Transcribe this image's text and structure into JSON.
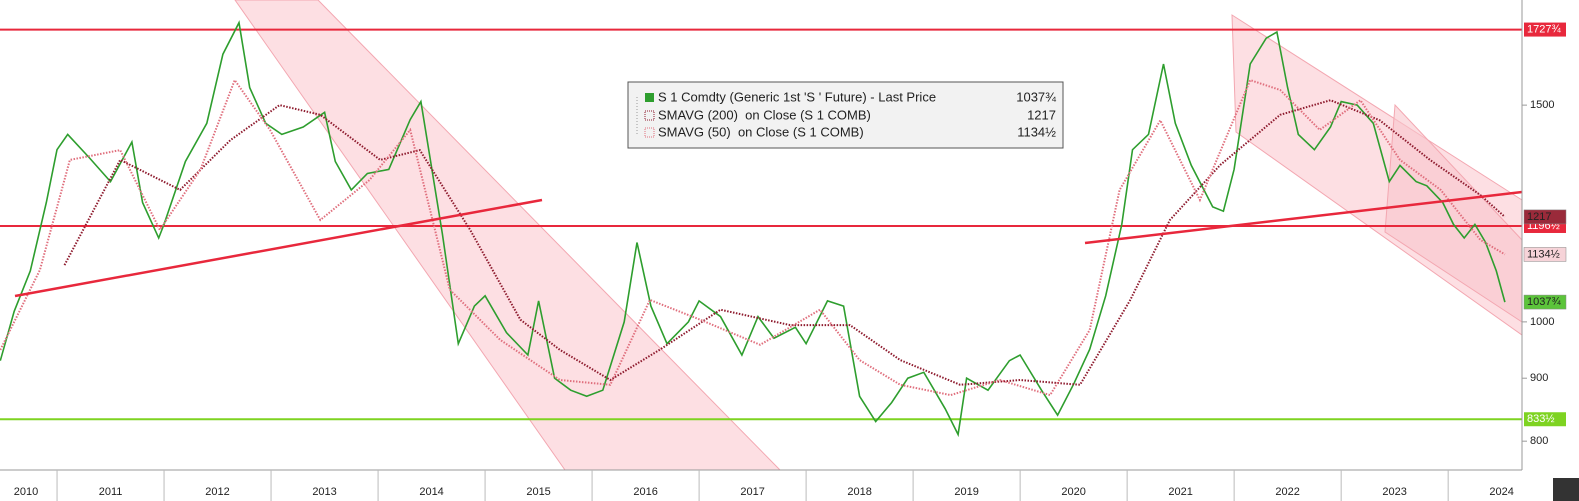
{
  "chart_data": {
    "type": "line",
    "log_scale": true,
    "grid": false,
    "xlim": [
      2010.467,
      2024.69
    ],
    "ylim": [
      758,
      1826
    ],
    "yticks": [
      800,
      900,
      1000,
      1500
    ],
    "xticks": [
      {
        "value": 2010,
        "label": "2010"
      },
      {
        "value": 2011,
        "label": "2011"
      },
      {
        "value": 2012,
        "label": "2012"
      },
      {
        "value": 2013,
        "label": "2013"
      },
      {
        "value": 2014,
        "label": "2014"
      },
      {
        "value": 2015,
        "label": "2015"
      },
      {
        "value": 2016,
        "label": "2016"
      },
      {
        "value": 2017,
        "label": "2017"
      },
      {
        "value": 2018,
        "label": "2018"
      },
      {
        "value": 2019,
        "label": "2019"
      },
      {
        "value": 2020,
        "label": "2020"
      },
      {
        "value": 2021,
        "label": "2021"
      },
      {
        "value": 2022,
        "label": "2022"
      },
      {
        "value": 2023,
        "label": "2023"
      },
      {
        "value": 2024,
        "label": "2024"
      }
    ],
    "series": [
      {
        "name": "S 1 Comdty (Generic 1st 'S ' Future) - Last Price",
        "color": "#2e9e2e",
        "style": "solid",
        "tag_color": "#5cc43a",
        "last_label": "1037¾",
        "x": [
          2010.47,
          2010.6,
          2010.75,
          2010.9,
          2011.0,
          2011.1,
          2011.3,
          2011.5,
          2011.7,
          2011.8,
          2011.95,
          2012.0,
          2012.2,
          2012.4,
          2012.55,
          2012.7,
          2012.8,
          2012.95,
          2013.1,
          2013.3,
          2013.5,
          2013.6,
          2013.75,
          2013.9,
          2014.1,
          2014.3,
          2014.4,
          2014.6,
          2014.75,
          2014.9,
          2015.0,
          2015.2,
          2015.4,
          2015.5,
          2015.65,
          2015.8,
          2015.95,
          2016.1,
          2016.3,
          2016.42,
          2016.55,
          2016.7,
          2016.9,
          2017.0,
          2017.2,
          2017.4,
          2017.55,
          2017.7,
          2017.9,
          2018.0,
          2018.2,
          2018.35,
          2018.5,
          2018.65,
          2018.8,
          2018.95,
          2019.1,
          2019.3,
          2019.42,
          2019.5,
          2019.7,
          2019.9,
          2020.0,
          2020.2,
          2020.35,
          2020.5,
          2020.65,
          2020.8,
          2020.95,
          2021.05,
          2021.2,
          2021.34,
          2021.45,
          2021.6,
          2021.8,
          2021.9,
          2022.0,
          2022.15,
          2022.3,
          2022.4,
          2022.5,
          2022.6,
          2022.75,
          2022.9,
          2023.0,
          2023.15,
          2023.3,
          2023.45,
          2023.55,
          2023.7,
          2023.8,
          2023.95,
          2024.05,
          2024.15,
          2024.25,
          2024.35,
          2024.45,
          2024.53
        ],
        "values": [
          930,
          1020,
          1100,
          1250,
          1380,
          1420,
          1360,
          1300,
          1400,
          1250,
          1170,
          1200,
          1350,
          1450,
          1650,
          1750,
          1550,
          1450,
          1420,
          1440,
          1480,
          1350,
          1280,
          1320,
          1330,
          1460,
          1510,
          1180,
          960,
          1030,
          1050,
          980,
          940,
          1040,
          900,
          880,
          870,
          880,
          1000,
          1160,
          1030,
          960,
          1000,
          1040,
          1010,
          940,
          1010,
          970,
          990,
          960,
          1040,
          1030,
          870,
          830,
          860,
          900,
          910,
          850,
          810,
          900,
          880,
          930,
          940,
          880,
          840,
          890,
          950,
          1050,
          1200,
          1380,
          1420,
          1620,
          1450,
          1340,
          1240,
          1230,
          1330,
          1620,
          1700,
          1720,
          1550,
          1420,
          1380,
          1440,
          1510,
          1500,
          1450,
          1300,
          1340,
          1300,
          1290,
          1250,
          1200,
          1170,
          1200,
          1160,
          1100,
          1037.75
        ]
      },
      {
        "name": "SMAVG (200)  on Close (S 1 COMB)",
        "color": "#8e1b2e",
        "style": "dotted",
        "tag_color": "#9a2a3a",
        "last_label": "1217",
        "x": [
          2011.07,
          2011.59,
          2012.15,
          2012.62,
          2013.08,
          2013.46,
          2014.02,
          2014.39,
          2014.86,
          2015.33,
          2015.7,
          2016.17,
          2016.63,
          2017.2,
          2017.85,
          2018.41,
          2018.88,
          2019.44,
          2020.0,
          2020.56,
          2021.03,
          2021.4,
          2021.87,
          2022.43,
          2022.9,
          2023.36,
          2023.83,
          2024.3,
          2024.53
        ],
        "values": [
          1112,
          1354,
          1280,
          1405,
          1500,
          1473,
          1354,
          1379,
          1188,
          1004,
          949,
          897,
          949,
          1023,
          994,
          994,
          931,
          889,
          897,
          889,
          1042,
          1210,
          1341,
          1473,
          1514,
          1458,
          1354,
          1268,
          1217
        ]
      },
      {
        "name": "SMAVG (50)  on Close (S 1 COMB)",
        "color": "#e0707e",
        "style": "dotted",
        "tag_color": "#f6d3d8",
        "last_label": "1134½",
        "x": [
          2010.47,
          2010.84,
          2011.12,
          2011.59,
          2011.96,
          2012.34,
          2012.66,
          2012.99,
          2013.46,
          2013.92,
          2014.3,
          2014.67,
          2015.14,
          2015.7,
          2016.17,
          2016.54,
          2017.01,
          2017.57,
          2018.13,
          2018.5,
          2018.88,
          2019.35,
          2019.81,
          2020.28,
          2020.65,
          2020.93,
          2021.31,
          2021.68,
          2022.15,
          2022.43,
          2022.8,
          2023.18,
          2023.55,
          2023.93,
          2024.3,
          2024.53
        ],
        "values": [
          949,
          1102,
          1354,
          1379,
          1188,
          1329,
          1572,
          1432,
          1210,
          1304,
          1432,
          1062,
          967,
          897,
          889,
          1042,
          1004,
          958,
          1023,
          931,
          889,
          872,
          897,
          872,
          985,
          1280,
          1458,
          1256,
          1572,
          1543,
          1432,
          1514,
          1354,
          1280,
          1166,
          1134.5
        ]
      }
    ],
    "levels": [
      {
        "value": 1727.75,
        "label": "1727¾",
        "color": "#e8283c"
      },
      {
        "value": 1196.5,
        "label": "1196½",
        "color": "#e8283c"
      },
      {
        "value": 833.5,
        "label": "833½",
        "color": "#7ed321"
      }
    ]
  }
}
